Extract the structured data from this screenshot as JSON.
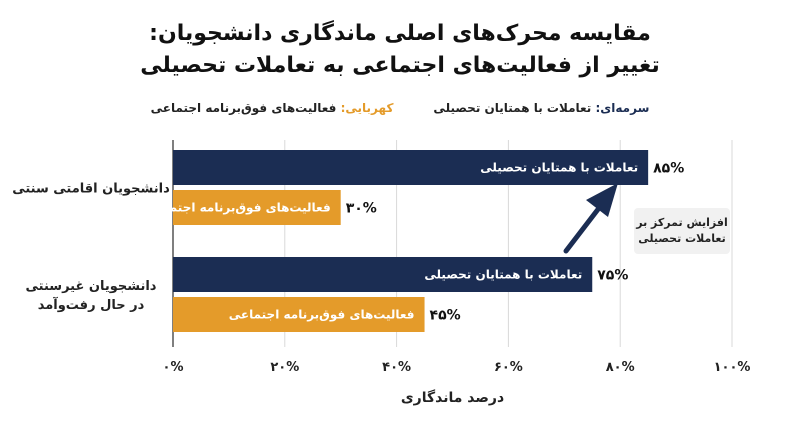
{
  "title": {
    "line1": "مقایسه محرک‌های اصلی ماندگاری دانشجویان:",
    "line2": "تغییر از فعالیت‌های اجتماعی به تعاملات تحصیلی"
  },
  "legend": {
    "navy_key": "سرمه‌ای:",
    "navy_value": "تعاملات با همتایان تحصیلی",
    "amber_key": "کهربایی:",
    "amber_value": "فعالیت‌های فوق‌برنامه اجتماعی"
  },
  "annotation": {
    "text": "افزایش تمرکز بر تعاملات تحصیلی"
  },
  "colors": {
    "navy": "#1b2d53",
    "amber": "#e49b2a"
  },
  "chart_data": {
    "type": "bar",
    "orientation": "horizontal",
    "categories": [
      "دانشجویان اقامتی سنتی",
      "دانشجویان غیرسنتی در حال رفت‌وآمد"
    ],
    "series": [
      {
        "name": "تعاملات با همتایان تحصیلی",
        "values": [
          85,
          75
        ],
        "value_labels": [
          "۸۵%",
          "۷۵%"
        ],
        "color": "#1b2d53"
      },
      {
        "name": "فعالیت‌های فوق‌برنامه اجتماعی",
        "values": [
          30,
          45
        ],
        "value_labels": [
          "۳۰%",
          "۴۵%"
        ],
        "color": "#e49b2a"
      }
    ],
    "xlabel": "درصد ماندگاری",
    "xlim": [
      0,
      100
    ],
    "xticks": [
      0,
      20,
      40,
      60,
      80,
      100
    ],
    "xtick_labels": [
      "۰%",
      "۲۰%",
      "۴۰%",
      "۶۰%",
      "۸۰%",
      "۱۰۰%"
    ],
    "grid": true
  }
}
